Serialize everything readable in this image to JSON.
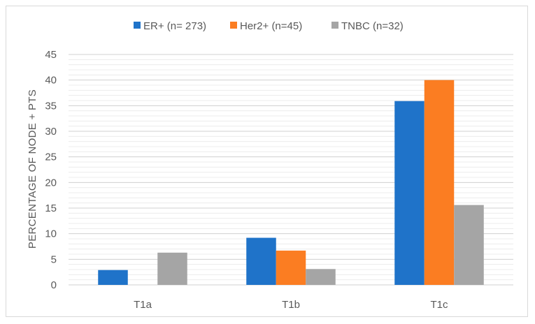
{
  "chart_data": {
    "type": "bar",
    "title": "",
    "xlabel": "",
    "ylabel": "PERCENTAGE OF NODE + PTS",
    "categories": [
      "T1a",
      "T1b",
      "T1c"
    ],
    "series": [
      {
        "name": "ER+ (n= 273)",
        "values": [
          2.9,
          9.2,
          35.9
        ],
        "color": "#1f73c9"
      },
      {
        "name": "Her2+ (n=45)",
        "values": [
          0,
          6.7,
          40.0
        ],
        "color": "#fb7d22"
      },
      {
        "name": "TNBC (n=32)",
        "values": [
          6.3,
          3.1,
          15.6
        ],
        "color": "#a5a5a5"
      }
    ],
    "ylim": [
      0,
      45
    ],
    "yticks": [
      0,
      5,
      10,
      15,
      20,
      25,
      30,
      35,
      40,
      45
    ],
    "grid": true,
    "legend_position": "top",
    "grid_color": "#d9d9d9"
  }
}
